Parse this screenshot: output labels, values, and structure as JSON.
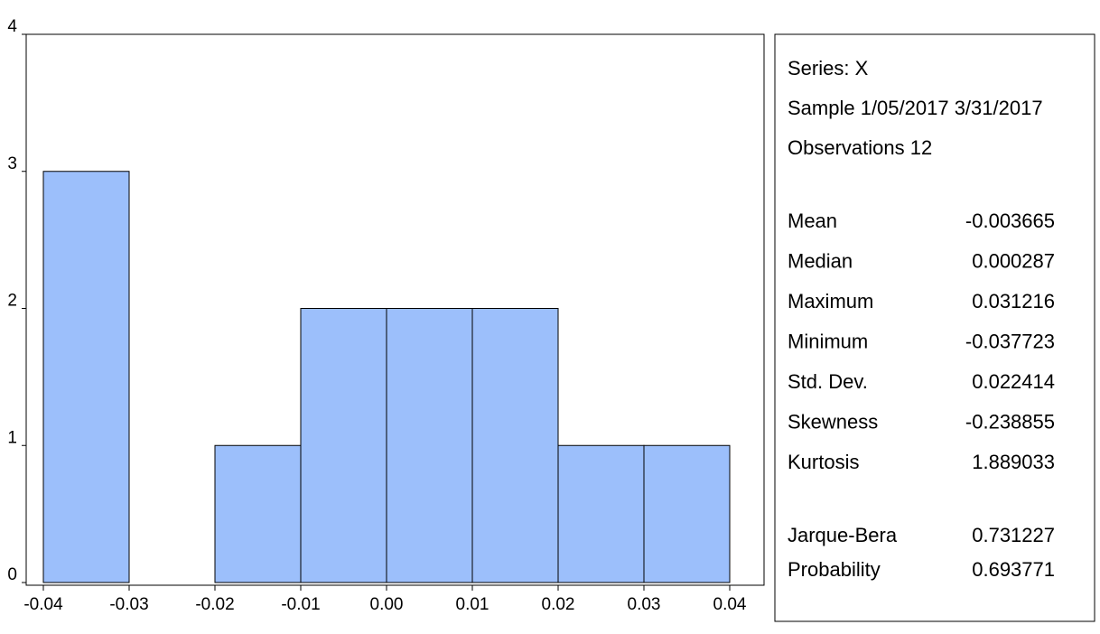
{
  "chart_data": {
    "type": "histogram",
    "bins": [
      -0.04,
      -0.03,
      -0.02,
      -0.01,
      0,
      0.01,
      0.02,
      0.03,
      0.04
    ],
    "values": [
      3,
      0,
      1,
      2,
      2,
      2,
      1,
      1
    ],
    "color": "#9cbffb",
    "xlim": [
      -0.042,
      0.044
    ],
    "xticks": [
      -0.04,
      -0.03,
      -0.02,
      -0.01,
      {
        "value": 0,
        "label": "0.00"
      },
      0.01,
      0.02,
      0.03,
      0.04
    ],
    "ylim": [
      0,
      4
    ],
    "yticks": [
      0,
      1,
      2,
      3,
      4
    ],
    "grid": false,
    "stats": {
      "header": [
        "Series: X",
        "Sample 1/05/2017 3/31/2017",
        "Observations 12"
      ],
      "rows": [
        [
          "Mean",
          "-0.003665"
        ],
        [
          "Median",
          "0.000287"
        ],
        [
          "Maximum",
          "0.031216"
        ],
        [
          "Minimum",
          "-0.037723"
        ],
        [
          "Std. Dev.",
          "0.022414"
        ],
        [
          "Skewness",
          "-0.238855"
        ],
        [
          "Kurtosis",
          "1.889033"
        ]
      ],
      "tests": [
        [
          "Jarque-Bera",
          "0.731227"
        ],
        [
          "Probability",
          "0.693771"
        ]
      ]
    }
  }
}
